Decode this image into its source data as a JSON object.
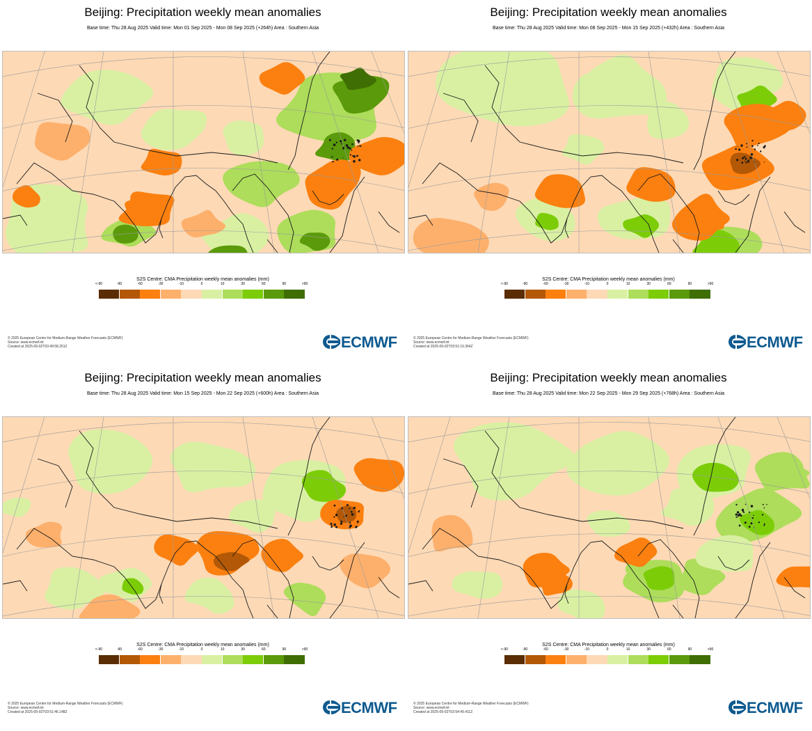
{
  "colors": {
    "scale": [
      "#5a2d04",
      "#b35806",
      "#fb8010",
      "#fdb06c",
      "#fdd9b5",
      "#ffffff",
      "#d9f0a3",
      "#addd5b",
      "#7ccd08",
      "#5b9a0a",
      "#3f6e04"
    ],
    "coast": "#1a1a1a",
    "grid": "#9a9a9a",
    "brand": "#0e5a8f"
  },
  "legend": {
    "title": "S2S Centre: CMA Precipitation weekly mean anomalies (mm)",
    "ticks": [
      "<-90",
      "-90",
      "-60",
      "-30",
      "-10",
      "0",
      "10",
      "30",
      "60",
      "90",
      ">90"
    ]
  },
  "logo_icon": "ecmwf-logo-icon",
  "panels": [
    {
      "title": "Beijing: Precipitation weekly mean anomalies",
      "subtitle": "Base time: Thu 28 Aug 2025 Valid time: Mon 01 Sep 2025 - Mon 08 Sep 2025 (+264h) Area : Southern Asia",
      "footer": [
        "© 2025 European Centre for Medium-Range Weather Forecasts (ECMWF)",
        "Source: www.ecmwf.int",
        "Created at 2025-09-02T03:49:58.251Z"
      ],
      "logo": "ECMWF"
    },
    {
      "title": "Beijing: Precipitation weekly mean anomalies",
      "subtitle": "Base time: Thu 28 Aug 2025 Valid time: Mon 08 Sep 2025 - Mon 15 Sep 2025 (+432h) Area : Southern Asia",
      "footer": [
        "© 2025 European Centre for Medium-Range Weather Forecasts (ECMWF)",
        "Source: www.ecmwf.int",
        "Created at 2025-09-02T03:51:19.364Z"
      ],
      "logo": "ECMWF"
    },
    {
      "title": "Beijing: Precipitation weekly mean anomalies",
      "subtitle": "Base time: Thu 28 Aug 2025 Valid time: Mon 15 Sep 2025 - Mon 22 Sep 2025 (+600h) Area : Southern Asia",
      "footer": [
        "© 2025 European Centre for Medium-Range Weather Forecasts (ECMWF)",
        "Source: www.ecmwf.int",
        "Created at 2025-09-02T03:51:46.148Z"
      ],
      "logo": "ECMWF"
    },
    {
      "title": "Beijing: Precipitation weekly mean anomalies",
      "subtitle": "Base time: Thu 28 Aug 2025 Valid time: Mon 22 Sep 2025 - Mon 29 Sep 2025 (+768h) Area : Southern Asia",
      "footer": [
        "© 2025 European Centre for Medium-Range Weather Forecasts (ECMWF)",
        "Source: www.ecmwf.int",
        "Created at 2025-09-02T03:54:49.411Z"
      ],
      "logo": "ECMWF"
    }
  ]
}
